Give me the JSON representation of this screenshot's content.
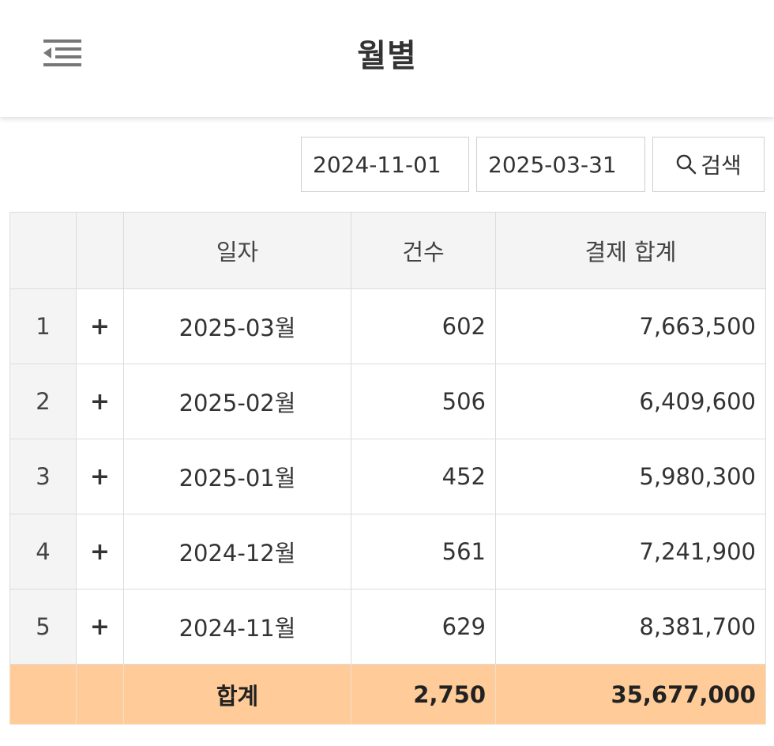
{
  "header": {
    "title": "월별",
    "menu_icon": "menu-collapse-icon"
  },
  "search": {
    "date_from": "2024-11-01",
    "date_to": "2025-03-31",
    "button_label": "검색",
    "button_icon": "search-icon"
  },
  "table": {
    "columns": {
      "rownum": "",
      "expand": "",
      "date": "일자",
      "count": "건수",
      "amount": "결제 합계"
    },
    "expand_symbol": "+",
    "rows": [
      {
        "num": "1",
        "date": "2025-03월",
        "count": "602",
        "amount": "7,663,500"
      },
      {
        "num": "2",
        "date": "2025-02월",
        "count": "506",
        "amount": "6,409,600"
      },
      {
        "num": "3",
        "date": "2025-01월",
        "count": "452",
        "amount": "5,980,300"
      },
      {
        "num": "4",
        "date": "2024-12월",
        "count": "561",
        "amount": "7,241,900"
      },
      {
        "num": "5",
        "date": "2024-11월",
        "count": "629",
        "amount": "8,381,700"
      }
    ],
    "total": {
      "label": "합계",
      "count": "2,750",
      "amount": "35,677,000"
    }
  },
  "colors": {
    "total_row_bg": "#ffcc99",
    "header_bg": "#f4f4f4",
    "border": "#dcdcdc"
  }
}
